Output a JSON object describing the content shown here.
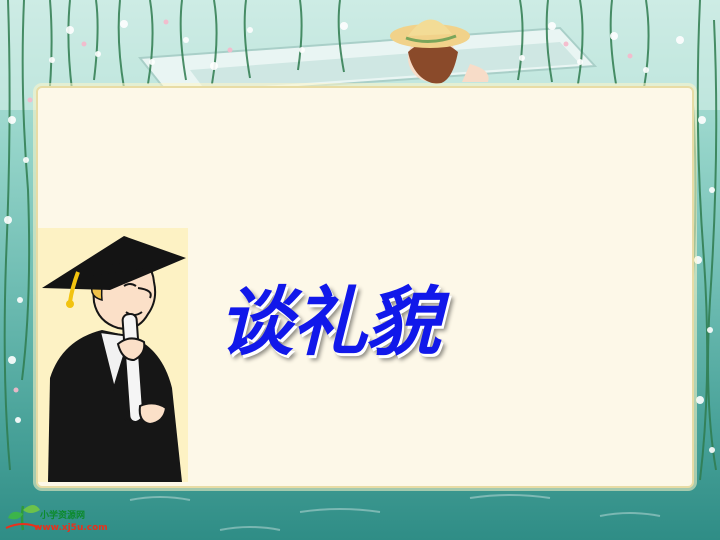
{
  "slide": {
    "title": "谈礼貌",
    "title_color": "#1118ea"
  },
  "background": {
    "theme": "willow-branches-and-boat-girl",
    "panel_color": "#fdf8e8"
  },
  "illustration": {
    "icon": "graduate-with-diploma-icon"
  },
  "watermark": {
    "icon": "sprout-logo-icon",
    "site_name": "小学资源网",
    "url": "www.xj5u.com"
  }
}
